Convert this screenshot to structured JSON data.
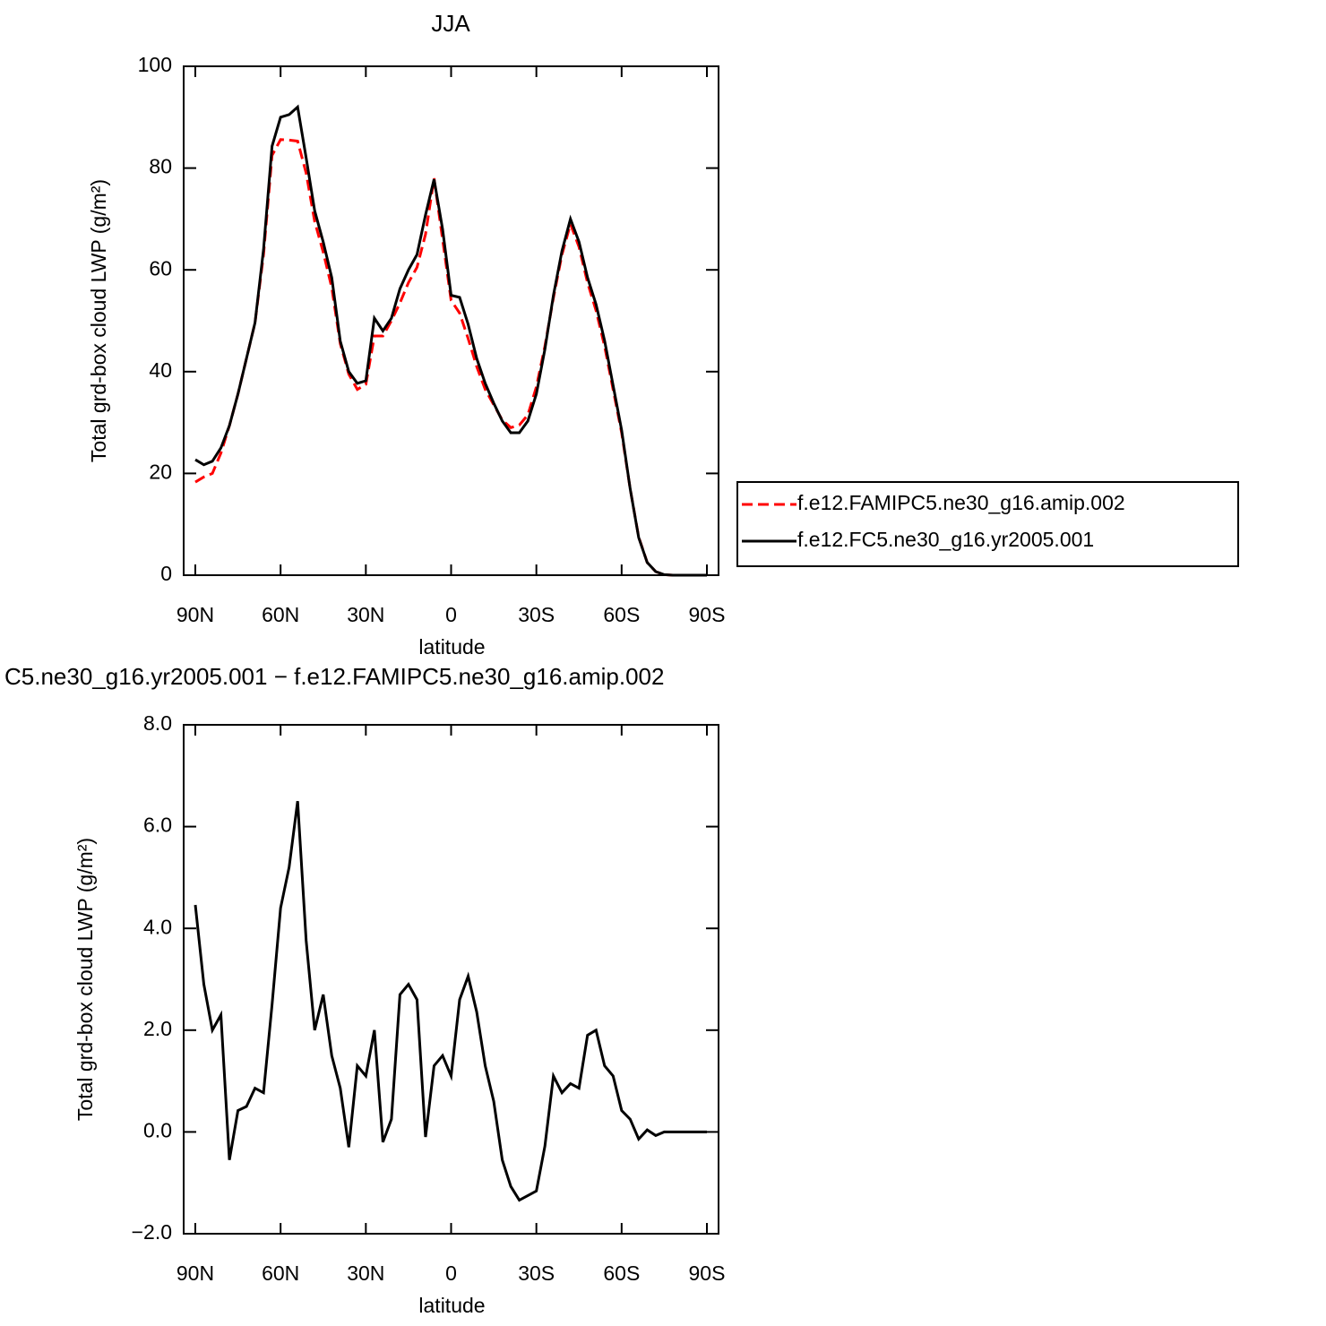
{
  "chart_data": [
    {
      "type": "line",
      "title": "JJA",
      "xlabel": "latitude",
      "ylabel": "Total grd-box cloud LWP (g/m²)",
      "x": [
        90,
        87,
        84,
        81,
        78,
        75,
        72,
        69,
        66,
        63,
        60,
        57,
        54,
        51,
        48,
        45,
        42,
        39,
        36,
        33,
        30,
        27,
        24,
        21,
        18,
        15,
        12,
        9,
        6,
        3,
        0,
        -3,
        -6,
        -9,
        -12,
        -15,
        -18,
        -21,
        -24,
        -27,
        -30,
        -33,
        -36,
        -39,
        -42,
        -45,
        -48,
        -51,
        -54,
        -57,
        -60,
        -63,
        -66,
        -69,
        -72,
        -75,
        -78,
        -81,
        -84,
        -87,
        -90
      ],
      "xlim": [
        94.1,
        -94.1
      ],
      "xticks": [
        {
          "value": 90,
          "label": "90N"
        },
        {
          "value": 60,
          "label": "60N"
        },
        {
          "value": 30,
          "label": "30N"
        },
        0,
        {
          "value": -30,
          "label": "30S"
        },
        {
          "value": -60,
          "label": "60S"
        },
        {
          "value": -90,
          "label": "90S"
        }
      ],
      "ylim": [
        0,
        100
      ],
      "yticks": [
        0,
        20,
        40,
        60,
        80,
        100
      ],
      "legend": "right",
      "series": [
        {
          "name": "f.e12.FAMIPC5.ne30_g16.amip.002",
          "color": "#ff0000",
          "linestyle": "dashed",
          "values": [
            18.3,
            19.3,
            20,
            24,
            29.4,
            35.6,
            42.6,
            49.6,
            63,
            82.5,
            85.6,
            85.5,
            85.3,
            79,
            69.5,
            63.5,
            56.5,
            45.5,
            39.5,
            36.5,
            37.5,
            47,
            47,
            50,
            53.5,
            57.5,
            60.5,
            67,
            78,
            66,
            54,
            51.5,
            46.5,
            41,
            36.5,
            33.5,
            30.5,
            29,
            29.5,
            31.5,
            37,
            45,
            54.5,
            63,
            69,
            64.5,
            57.5,
            52,
            45,
            36.5,
            28,
            17,
            7.5,
            2.5,
            0.7,
            0.1,
            0,
            0,
            0,
            0,
            0
          ]
        },
        {
          "name": "f.e12.FC5.ne30_g16.yr2005.001",
          "color": "#000000",
          "linestyle": "solid",
          "values": [
            22.7,
            21.7,
            22.4,
            25,
            29.4,
            35.6,
            42.6,
            49.6,
            64,
            84.3,
            90,
            90.5,
            92,
            82,
            71.6,
            65.5,
            58.5,
            46,
            40,
            37.7,
            38.2,
            50.5,
            48,
            50.5,
            56.3,
            60,
            63,
            70.8,
            77.8,
            68,
            55,
            54.6,
            49.3,
            42.6,
            37.7,
            33.8,
            30.3,
            28,
            28,
            30.3,
            35.6,
            44.4,
            55,
            63.7,
            70,
            65.5,
            58.5,
            53.2,
            46.1,
            37.3,
            28.5,
            17,
            7.4,
            2.5,
            0.7,
            0.1,
            0,
            0,
            0,
            0,
            0
          ]
        }
      ]
    },
    {
      "type": "line",
      "title": "C5.ne30_g16.yr2005.001 − f.e12.FAMIPC5.ne30_g16.amip.002",
      "xlabel": "latitude",
      "ylabel": "Total grd-box cloud LWP (g/m²)",
      "x": [
        90,
        87,
        84,
        81,
        78,
        75,
        72,
        69,
        66,
        63,
        60,
        57,
        54,
        51,
        48,
        45,
        42,
        39,
        36,
        33,
        30,
        27,
        24,
        21,
        18,
        15,
        12,
        9,
        6,
        3,
        0,
        -3,
        -6,
        -9,
        -12,
        -15,
        -18,
        -21,
        -24,
        -27,
        -30,
        -33,
        -36,
        -39,
        -42,
        -45,
        -48,
        -51,
        -54,
        -57,
        -60,
        -63,
        -66,
        -69,
        -72,
        -75,
        -78,
        -81,
        -84,
        -87,
        -90
      ],
      "xlim": [
        94.1,
        -94.1
      ],
      "xticks": [
        {
          "value": 90,
          "label": "90N"
        },
        {
          "value": 60,
          "label": "60N"
        },
        {
          "value": 30,
          "label": "30N"
        },
        0,
        {
          "value": -30,
          "label": "30S"
        },
        {
          "value": -60,
          "label": "60S"
        },
        {
          "value": -90,
          "label": "90S"
        }
      ],
      "ylim": [
        -2,
        8
      ],
      "yticks": [
        {
          "value": -2,
          "label": "−2.0"
        },
        {
          "value": 0,
          "label": "0.0"
        },
        {
          "value": 2,
          "label": "2.0"
        },
        {
          "value": 4,
          "label": "4.0"
        },
        {
          "value": 6,
          "label": "6.0"
        },
        {
          "value": 8,
          "label": "8.0"
        }
      ],
      "color": "#000000",
      "values": [
        4.46,
        2.9,
        2.0,
        2.3,
        -0.55,
        0.42,
        0.5,
        0.86,
        0.77,
        2.5,
        4.4,
        5.2,
        6.5,
        3.76,
        2.0,
        2.7,
        1.5,
        0.86,
        -0.3,
        1.3,
        1.1,
        2.0,
        -0.2,
        0.25,
        2.7,
        2.9,
        2.6,
        -0.1,
        1.3,
        1.5,
        1.1,
        2.6,
        3.06,
        2.36,
        1.3,
        0.6,
        -0.55,
        -1.07,
        -1.34,
        -1.25,
        -1.16,
        -0.28,
        1.1,
        0.77,
        0.95,
        0.86,
        1.9,
        2.0,
        1.3,
        1.1,
        0.42,
        0.25,
        -0.14,
        0.04,
        -0.07,
        0,
        0,
        0,
        0,
        0,
        0
      ]
    }
  ]
}
